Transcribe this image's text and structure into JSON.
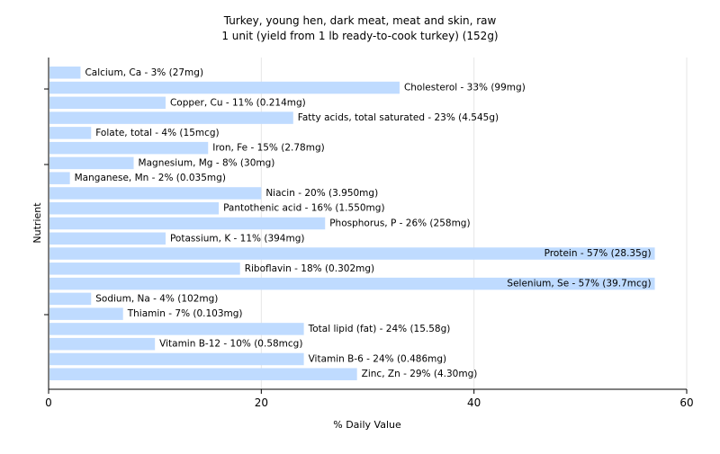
{
  "chart_data": {
    "type": "bar",
    "orientation": "horizontal",
    "title": "Turkey, young hen, dark meat, meat and skin, raw",
    "subtitle": "1 unit (yield from 1 lb ready-to-cook turkey) (152g)",
    "xlabel": "% Daily Value",
    "ylabel": "Nutrient",
    "xlim": [
      0,
      60
    ],
    "xticks": [
      "0",
      "20",
      "40",
      "60"
    ],
    "grid": true,
    "bar_color": "#bfdbff",
    "categories": [
      "Calcium, Ca",
      "Cholesterol",
      "Copper, Cu",
      "Fatty acids, total saturated",
      "Folate, total",
      "Iron, Fe",
      "Magnesium, Mg",
      "Manganese, Mn",
      "Niacin",
      "Pantothenic acid",
      "Phosphorus, P",
      "Potassium, K",
      "Protein",
      "Riboflavin",
      "Selenium, Se",
      "Sodium, Na",
      "Thiamin",
      "Total lipid (fat)",
      "Vitamin B-12",
      "Vitamin B-6",
      "Zinc, Zn"
    ],
    "values": [
      3,
      33,
      11,
      23,
      4,
      15,
      8,
      2,
      20,
      16,
      26,
      11,
      57,
      18,
      57,
      4,
      7,
      24,
      10,
      24,
      29
    ],
    "labels": [
      "Calcium, Ca - 3% (27mg)",
      "Cholesterol - 33% (99mg)",
      "Copper, Cu - 11% (0.214mg)",
      "Fatty acids, total saturated - 23% (4.545g)",
      "Folate, total - 4% (15mcg)",
      "Iron, Fe - 15% (2.78mg)",
      "Magnesium, Mg - 8% (30mg)",
      "Manganese, Mn - 2% (0.035mg)",
      "Niacin - 20% (3.950mg)",
      "Pantothenic acid - 16% (1.550mg)",
      "Phosphorus, P - 26% (258mg)",
      "Potassium, K - 11% (394mg)",
      "Protein - 57% (28.35g)",
      "Riboflavin - 18% (0.302mg)",
      "Selenium, Se - 57% (39.7mcg)",
      "Sodium, Na - 4% (102mg)",
      "Thiamin - 7% (0.103mg)",
      "Total lipid (fat) - 24% (15.58g)",
      "Vitamin B-12 - 10% (0.58mcg)",
      "Vitamin B-6 - 24% (0.486mg)",
      "Zinc, Zn - 29% (4.30mg)"
    ]
  }
}
